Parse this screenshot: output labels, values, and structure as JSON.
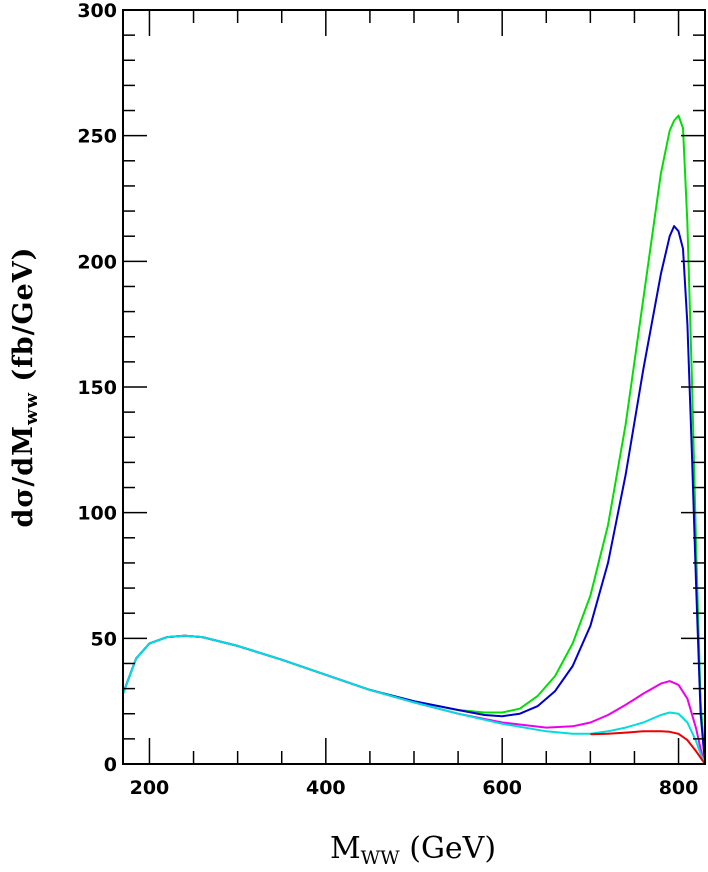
{
  "chart_data": {
    "type": "line",
    "title": "",
    "xlabel": {
      "main": "M",
      "sub": "WW",
      "unit": " (GeV)"
    },
    "ylabel": {
      "pre": "dσ/dM",
      "sub": "ww",
      "post": " (fb/GeV)"
    },
    "xlim": [
      170,
      830
    ],
    "ylim": [
      0,
      300
    ],
    "x_ticks": [
      200,
      400,
      600,
      800
    ],
    "y_ticks": [
      0,
      50,
      100,
      150,
      200,
      250,
      300
    ],
    "x_tick_labels": [
      "200",
      "400",
      "600",
      "800"
    ],
    "y_tick_labels": [
      "0",
      "50",
      "100",
      "150",
      "200",
      "250",
      "300"
    ],
    "grid": false,
    "legend": "none",
    "series": [
      {
        "color": "#00e000",
        "x": [
          170,
          185,
          200,
          220,
          240,
          260,
          300,
          350,
          400,
          450,
          500,
          550,
          580,
          600,
          620,
          640,
          660,
          680,
          700,
          720,
          740,
          760,
          780,
          790,
          795,
          800,
          805,
          810,
          815,
          820,
          825,
          830
        ],
        "y": [
          28,
          42,
          48,
          50.5,
          51,
          50.5,
          47,
          41.5,
          35.5,
          29.5,
          25,
          21.5,
          20.5,
          20.5,
          22,
          27,
          35,
          48,
          67,
          95,
          135,
          185,
          235,
          252,
          256,
          258,
          253,
          215,
          155,
          85,
          25,
          0
        ]
      },
      {
        "color": "#0000cc",
        "x": [
          170,
          185,
          200,
          220,
          240,
          260,
          300,
          350,
          400,
          450,
          500,
          550,
          580,
          600,
          620,
          640,
          660,
          680,
          700,
          720,
          740,
          760,
          780,
          790,
          795,
          800,
          805,
          810,
          815,
          820,
          825,
          830
        ],
        "y": [
          28,
          42,
          48,
          50.5,
          51,
          50.5,
          47,
          41.5,
          35.5,
          29.5,
          25,
          21.5,
          19.5,
          19,
          20,
          23,
          29,
          39,
          55,
          80,
          115,
          157,
          195,
          210,
          214,
          212,
          205,
          175,
          125,
          70,
          20,
          0
        ]
      },
      {
        "color": "#ee00ee",
        "x": [
          170,
          185,
          200,
          220,
          240,
          260,
          300,
          350,
          400,
          450,
          500,
          550,
          600,
          650,
          680,
          700,
          720,
          740,
          760,
          780,
          790,
          800,
          810,
          820,
          825,
          830
        ],
        "y": [
          28,
          42,
          48,
          50.5,
          51,
          50.5,
          47,
          41.5,
          35.5,
          29.5,
          24.5,
          20,
          16.5,
          14.5,
          15,
          16.5,
          19.5,
          23.5,
          28,
          32,
          33,
          31.5,
          26,
          14,
          6,
          0
        ]
      },
      {
        "color": "#00dddd",
        "x": [
          170,
          185,
          200,
          220,
          240,
          260,
          300,
          350,
          400,
          450,
          500,
          550,
          600,
          650,
          680,
          700,
          720,
          740,
          760,
          780,
          790,
          800,
          810,
          820,
          825,
          830
        ],
        "y": [
          28,
          42,
          48,
          50.5,
          51,
          50.5,
          47,
          41.5,
          35.5,
          29.5,
          24.5,
          20,
          16,
          13,
          12,
          12,
          13,
          14.5,
          16.5,
          19.5,
          20.5,
          20,
          16.5,
          9,
          4,
          0
        ]
      },
      {
        "color": "#ee0000",
        "x": [
          700,
          720,
          740,
          760,
          780,
          790,
          800,
          810,
          820,
          830
        ],
        "y": [
          11.8,
          12,
          12.5,
          13,
          13,
          12.8,
          12,
          9.5,
          5,
          0
        ]
      }
    ]
  }
}
